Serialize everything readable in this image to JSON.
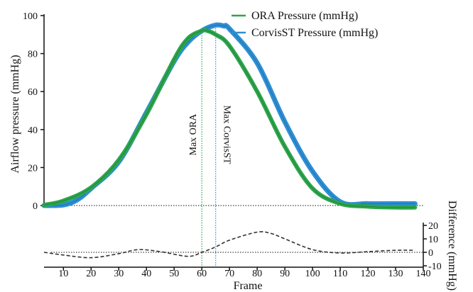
{
  "chart_data": [
    {
      "type": "line",
      "ylabel": "Airflow pressure (mmHg)",
      "xlim": [
        3,
        140
      ],
      "ylim": [
        0,
        100
      ],
      "yticks": [
        "0",
        "20",
        "40",
        "60",
        "80",
        "100"
      ],
      "legend_placement": "top-right",
      "grid": false,
      "series": [
        {
          "name": "ORA Pressure (mmHg)",
          "color": "#2ca64b",
          "x": [
            3,
            10,
            20,
            30,
            40,
            50,
            55,
            60,
            62,
            65,
            70,
            80,
            90,
            100,
            110,
            120,
            130,
            137
          ],
          "y": [
            0.3,
            2.5,
            9.5,
            24,
            48,
            77,
            88,
            92,
            92,
            90,
            84,
            60,
            31,
            9,
            1,
            -0.5,
            -1,
            -1
          ]
        },
        {
          "name": "CorvisST Pressure (mmHg)",
          "color": "#2d8fd6",
          "x": [
            3,
            10,
            15,
            20,
            30,
            40,
            50,
            55,
            60,
            65,
            68,
            70,
            80,
            90,
            100,
            110,
            120,
            130,
            137
          ],
          "y": [
            0,
            0.3,
            3,
            9,
            23,
            49,
            76,
            86,
            92,
            95,
            94.5,
            93,
            75,
            44,
            18,
            2,
            1,
            1,
            1
          ]
        }
      ],
      "annotations": [
        {
          "text": "Max ORA",
          "x": 60
        },
        {
          "text": "Max CorvisST",
          "x": 65
        }
      ]
    },
    {
      "type": "line",
      "xlabel": "Frame",
      "ylabel": "Difference (mmHg)",
      "xlim": [
        3,
        140
      ],
      "ylim": [
        -10,
        20
      ],
      "xticks": [
        "10",
        "20",
        "30",
        "40",
        "50",
        "60",
        "70",
        "80",
        "90",
        "100",
        "110",
        "120",
        "130",
        "140"
      ],
      "yticks": [
        "-10",
        "0",
        "10",
        "20"
      ],
      "grid": false,
      "series": [
        {
          "x": [
            3,
            10,
            20,
            30,
            37,
            45,
            55,
            60,
            65,
            70,
            80,
            85,
            90,
            100,
            110,
            120,
            130,
            137
          ],
          "y": [
            0,
            -2,
            -4,
            -1,
            2,
            0.5,
            -3,
            0,
            4,
            9,
            15,
            14,
            10,
            2,
            -0.5,
            0.5,
            1.5,
            1.5
          ]
        }
      ]
    }
  ],
  "colors": {
    "ora": "#2ca64b",
    "corvis": "#2d8fd6",
    "difference": "#333333",
    "axis": "#111111"
  }
}
